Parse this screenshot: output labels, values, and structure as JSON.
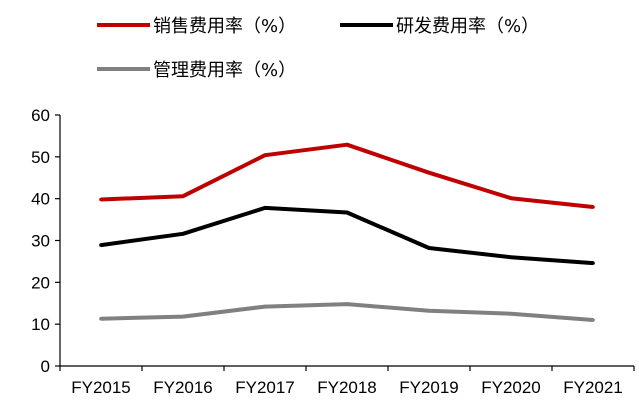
{
  "chart_data": {
    "type": "line",
    "title": "",
    "xlabel": "",
    "ylabel": "",
    "categories": [
      "FY2015",
      "FY2016",
      "FY2017",
      "FY2018",
      "FY2019",
      "FY2020",
      "FY2021"
    ],
    "ylim": [
      0,
      60
    ],
    "yticks": [
      0,
      10,
      20,
      30,
      40,
      50,
      60
    ],
    "grid": false,
    "legend_position": "top",
    "series": [
      {
        "name": "销售费用率（%）",
        "color": "#C00000",
        "values": [
          39.8,
          40.6,
          50.4,
          52.9,
          46.2,
          40.1,
          38.0
        ]
      },
      {
        "name": "研发费用率（%）",
        "color": "#000000",
        "values": [
          28.9,
          31.6,
          37.8,
          36.7,
          28.2,
          26.0,
          24.6
        ]
      },
      {
        "name": "管理费用率（%）",
        "color": "#808080",
        "values": [
          11.3,
          11.8,
          14.2,
          14.8,
          13.2,
          12.5,
          11.0
        ]
      }
    ]
  }
}
